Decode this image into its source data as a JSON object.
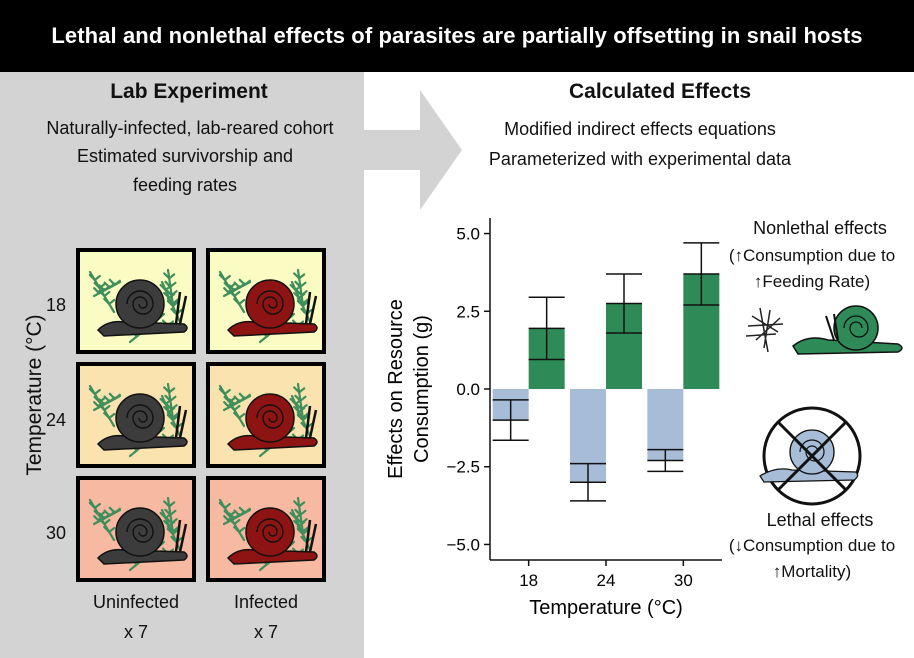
{
  "banner": {
    "title": "Lethal and nonlethal effects of parasites are partially offsetting in snail hosts"
  },
  "lab": {
    "heading": "Lab Experiment",
    "lines": [
      "Naturally-infected, lab-reared cohort",
      "Estimated survivorship and",
      "feeding rates"
    ],
    "y_axis_label": "Temperature (°C)",
    "rows": [
      "18",
      "24",
      "30"
    ],
    "columns": [
      {
        "label": "Uninfected",
        "count": "x 7"
      },
      {
        "label": "Infected",
        "count": "x 7"
      }
    ],
    "colors": {
      "row_18": "#fafcc4",
      "row_24": "#fbe3b0",
      "row_30": "#f7b9a1",
      "uninfected_snail": "#3c3c3c",
      "infected_snail": "#8e1414",
      "plant": "#3e8f5c"
    }
  },
  "calc": {
    "heading": "Calculated Effects",
    "lines": [
      "Modified indirect effects equations",
      "Parameterized with experimental data"
    ]
  },
  "chart_data": {
    "type": "bar",
    "categories": [
      "18",
      "24",
      "30"
    ],
    "xlabel": "Temperature (°C)",
    "ylabel": [
      "Effects on Resource",
      "Consumption (g)"
    ],
    "ylim": [
      -5.5,
      5.5
    ],
    "yticks": [
      "5.0",
      "2.5",
      "0.0",
      "−2.5",
      "−5.0"
    ],
    "series": [
      {
        "name": "Lethal effects",
        "color": "#a7bcd6",
        "values": [
          -1.0,
          -3.0,
          -2.3
        ],
        "error": [
          0.65,
          0.6,
          0.35
        ]
      },
      {
        "name": "Nonlethal effects",
        "color": "#2e8b57",
        "values": [
          1.95,
          2.75,
          3.7
        ],
        "error": [
          1.0,
          0.95,
          1.0
        ]
      }
    ]
  },
  "legend": {
    "nonlethal_title": "Nonlethal effects",
    "nonlethal_line1": "(↑Consumption due to",
    "nonlethal_line2": "↑Feeding Rate)",
    "lethal_title": "Lethal effects",
    "lethal_line1": "(↓Consumption due to",
    "lethal_line2": "↑Mortality)"
  }
}
